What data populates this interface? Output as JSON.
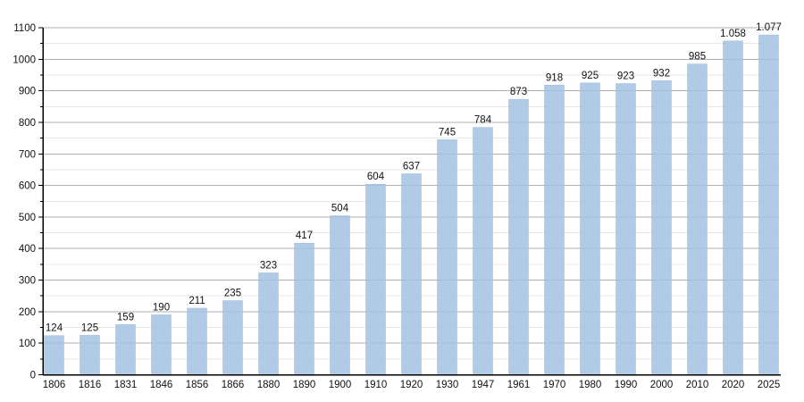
{
  "chart_data": {
    "type": "bar",
    "title": "",
    "xlabel": "",
    "ylabel": "",
    "categories": [
      "1806",
      "1816",
      "1831",
      "1846",
      "1856",
      "1866",
      "1880",
      "1890",
      "1900",
      "1910",
      "1920",
      "1930",
      "1947",
      "1961",
      "1970",
      "1980",
      "1990",
      "2000",
      "2010",
      "2020",
      "2025"
    ],
    "values": [
      124,
      125,
      159,
      190,
      211,
      235,
      323,
      417,
      504,
      604,
      637,
      745,
      784,
      873,
      918,
      925,
      923,
      932,
      985,
      1058,
      1077
    ],
    "value_labels": [
      "124",
      "125",
      "159",
      "190",
      "211",
      "235",
      "323",
      "417",
      "504",
      "604",
      "637",
      "745",
      "784",
      "873",
      "918",
      "925",
      "923",
      "932",
      "985",
      "1.058",
      "1.077"
    ],
    "ylim": [
      0,
      1100
    ],
    "yticks": [
      0,
      100,
      200,
      300,
      400,
      500,
      600,
      700,
      800,
      900,
      1000,
      1100
    ],
    "ytick_step": 100,
    "minor_tick_step": 50,
    "grid": true,
    "legend_position": "none",
    "colors": {
      "bar_fill": "#a3c2e2",
      "bar_fill_opacity": 0.85,
      "bar_edge": "#9dbcdc",
      "major_grid": "#b0b0b0",
      "minor_grid": "#e7e7e7",
      "axis": "#000000",
      "text": "#111111",
      "background": "#ffffff"
    }
  }
}
